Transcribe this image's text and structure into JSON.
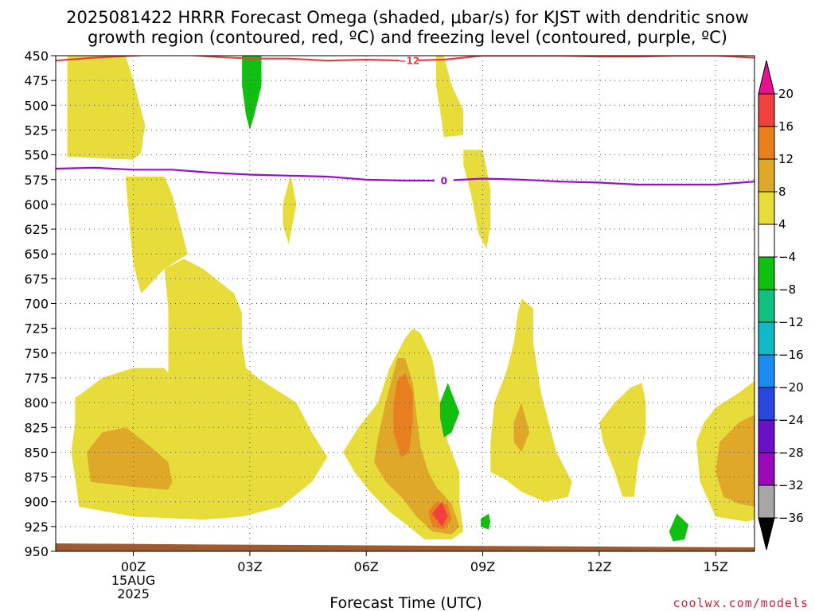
{
  "title_line1": "2025081422 HRRR Forecast Omega (shaded, μbar/s) for KJST with dendritic snow",
  "title_line2": "growth region (contoured, red, ºC) and freezing level (contoured, purple, ºC)",
  "credit": "coolwx.com/models",
  "chart_data": {
    "type": "heatmap",
    "xlabel": "Forecast Time (UTC)",
    "x_unit": "forecast hour (0 = 00Z 15AUG 2025)",
    "xlim": [
      -2,
      16
    ],
    "x_ticks": [
      {
        "value": 0,
        "lines": [
          "00Z",
          "15AUG",
          "2025"
        ]
      },
      {
        "value": 3,
        "lines": [
          "03Z"
        ]
      },
      {
        "value": 6,
        "lines": [
          "06Z"
        ]
      },
      {
        "value": 9,
        "lines": [
          "09Z"
        ]
      },
      {
        "value": 12,
        "lines": [
          "12Z"
        ]
      },
      {
        "value": 15,
        "lines": [
          "15Z"
        ]
      }
    ],
    "y_unit": "pressure (hPa)",
    "ylim": [
      450,
      950
    ],
    "y_ticks": [
      450,
      475,
      500,
      525,
      550,
      575,
      600,
      625,
      650,
      675,
      700,
      725,
      750,
      775,
      800,
      825,
      850,
      875,
      900,
      925,
      950
    ],
    "grid": true,
    "colorbar": {
      "unit": "μbar/s",
      "levels": [
        -36,
        -32,
        -28,
        -24,
        -20,
        -16,
        -12,
        -8,
        -4,
        4,
        8,
        12,
        16,
        20
      ],
      "colors": [
        "#000000",
        "#a6a6a6",
        "#9a08b8",
        "#6a10c8",
        "#2848e0",
        "#1a8cf0",
        "#10b8c8",
        "#10c080",
        "#10c010",
        "#ffffff",
        "#e8dc3a",
        "#e0a828",
        "#e88020",
        "#f04040",
        "#e8108c"
      ],
      "extend_low": true,
      "extend_high": true
    },
    "omega_regions": [
      {
        "level": "4 to 8",
        "color": "#e8dc3a",
        "polygon": [
          [
            -1.7,
            450
          ],
          [
            -0.2,
            450
          ],
          [
            0,
            475
          ],
          [
            0.3,
            520
          ],
          [
            0.2,
            548
          ],
          [
            0,
            555
          ],
          [
            -1.7,
            552
          ]
        ]
      },
      {
        "level": "-8 to -4",
        "color": "#10c010",
        "polygon": [
          [
            2.8,
            450
          ],
          [
            3.3,
            450
          ],
          [
            3.3,
            480
          ],
          [
            3.1,
            512
          ],
          [
            3.0,
            525
          ],
          [
            2.9,
            510
          ],
          [
            2.8,
            480
          ]
        ]
      },
      {
        "level": "4 to 8",
        "color": "#e8dc3a",
        "polygon": [
          [
            7.8,
            450
          ],
          [
            8.0,
            450
          ],
          [
            8.2,
            480
          ],
          [
            8.5,
            505
          ],
          [
            8.5,
            530
          ],
          [
            8.0,
            532
          ],
          [
            7.9,
            505
          ],
          [
            7.8,
            480
          ]
        ]
      },
      {
        "level": "4 to 8",
        "color": "#e8dc3a",
        "polygon": [
          [
            8.5,
            545
          ],
          [
            9.0,
            545
          ],
          [
            9.2,
            585
          ],
          [
            9.2,
            620
          ],
          [
            9.1,
            645
          ],
          [
            8.9,
            630
          ],
          [
            8.7,
            590
          ],
          [
            8.5,
            560
          ]
        ]
      },
      {
        "level": "4 to 8",
        "color": "#e8dc3a",
        "polygon": [
          [
            3.85,
            600
          ],
          [
            4.05,
            570
          ],
          [
            4.2,
            600
          ],
          [
            4.0,
            640
          ],
          [
            3.85,
            620
          ]
        ]
      },
      {
        "level": "4 to 8",
        "color": "#e8dc3a",
        "polygon": [
          [
            -1.5,
            795
          ],
          [
            -1.2,
            787
          ],
          [
            -0.8,
            775
          ],
          [
            0,
            765
          ],
          [
            0.8,
            765
          ],
          [
            0.9,
            770
          ],
          [
            0.9,
            705
          ],
          [
            0.8,
            665
          ],
          [
            1.3,
            655
          ],
          [
            1.8,
            665
          ],
          [
            2.6,
            690
          ],
          [
            2.8,
            710
          ],
          [
            2.8,
            740
          ],
          [
            2.9,
            765
          ],
          [
            3.2,
            775
          ],
          [
            4.2,
            800
          ],
          [
            4.6,
            830
          ],
          [
            5.0,
            855
          ],
          [
            4.6,
            880
          ],
          [
            3.8,
            905
          ],
          [
            2.8,
            915
          ],
          [
            1.8,
            918
          ],
          [
            0,
            915
          ],
          [
            -1.4,
            905
          ],
          [
            -1.5,
            875
          ],
          [
            -1.6,
            850
          ],
          [
            -1.5,
            820
          ]
        ]
      },
      {
        "level": "4 to 8",
        "color": "#e8dc3a",
        "polygon": [
          [
            -0.2,
            572
          ],
          [
            0.8,
            572
          ],
          [
            1.0,
            590
          ],
          [
            1.2,
            620
          ],
          [
            1.4,
            650
          ],
          [
            0.8,
            665
          ],
          [
            0.2,
            690
          ],
          [
            0,
            660
          ],
          [
            -0.1,
            620
          ]
        ]
      },
      {
        "level": "4 to 8",
        "color": "#e8dc3a",
        "polygon": [
          [
            5.4,
            850
          ],
          [
            5.8,
            825
          ],
          [
            6.3,
            800
          ],
          [
            6.6,
            765
          ],
          [
            7.0,
            735
          ],
          [
            7.2,
            725
          ],
          [
            7.4,
            730
          ],
          [
            7.7,
            755
          ],
          [
            7.9,
            800
          ],
          [
            8.1,
            840
          ],
          [
            8.4,
            870
          ],
          [
            8.4,
            885
          ],
          [
            8.4,
            900
          ],
          [
            8.5,
            930
          ],
          [
            8.2,
            938
          ],
          [
            7.5,
            938
          ],
          [
            7.1,
            925
          ],
          [
            6.6,
            910
          ],
          [
            6.1,
            890
          ],
          [
            5.7,
            870
          ]
        ]
      },
      {
        "level": "4 to 8",
        "color": "#e8dc3a",
        "polygon": [
          [
            9.2,
            870
          ],
          [
            9.2,
            840
          ],
          [
            9.3,
            800
          ],
          [
            9.6,
            770
          ],
          [
            9.8,
            740
          ],
          [
            9.9,
            710
          ],
          [
            10.0,
            695
          ],
          [
            10.3,
            705
          ],
          [
            10.3,
            740
          ],
          [
            10.5,
            790
          ],
          [
            10.9,
            850
          ],
          [
            11.3,
            880
          ],
          [
            11.2,
            895
          ],
          [
            10.6,
            900
          ],
          [
            10.0,
            890
          ],
          [
            9.6,
            878
          ]
        ]
      },
      {
        "level": "4 to 8",
        "color": "#e8dc3a",
        "polygon": [
          [
            12.0,
            820
          ],
          [
            12.4,
            800
          ],
          [
            12.8,
            785
          ],
          [
            13.1,
            780
          ],
          [
            13.2,
            800
          ],
          [
            13.2,
            830
          ],
          [
            13.0,
            860
          ],
          [
            12.9,
            895
          ],
          [
            12.6,
            895
          ],
          [
            12.4,
            870
          ],
          [
            12.1,
            840
          ]
        ]
      },
      {
        "level": "4 to 8",
        "color": "#e8dc3a",
        "polygon": [
          [
            15.0,
            805
          ],
          [
            15.6,
            790
          ],
          [
            16,
            778
          ],
          [
            16,
            918
          ],
          [
            15.8,
            920
          ],
          [
            15.0,
            915
          ],
          [
            14.6,
            880
          ],
          [
            14.5,
            840
          ],
          [
            14.7,
            820
          ]
        ]
      },
      {
        "level": "8 to 12",
        "color": "#e0a828",
        "polygon": [
          [
            -1.2,
            850
          ],
          [
            -0.8,
            830
          ],
          [
            -0.2,
            825
          ],
          [
            0.3,
            840
          ],
          [
            0.9,
            860
          ],
          [
            1.0,
            880
          ],
          [
            0.9,
            888
          ],
          [
            0,
            885
          ],
          [
            -1.1,
            880
          ]
        ]
      },
      {
        "level": "8 to 12",
        "color": "#e0a828",
        "polygon": [
          [
            6.2,
            860
          ],
          [
            6.3,
            835
          ],
          [
            6.5,
            800
          ],
          [
            6.7,
            770
          ],
          [
            6.8,
            755
          ],
          [
            7.0,
            755
          ],
          [
            7.2,
            780
          ],
          [
            7.3,
            815
          ],
          [
            7.4,
            845
          ],
          [
            7.6,
            870
          ],
          [
            7.8,
            885
          ],
          [
            8.2,
            902
          ],
          [
            8.4,
            925
          ],
          [
            8.2,
            933
          ],
          [
            7.7,
            930
          ],
          [
            7.3,
            915
          ],
          [
            6.9,
            895
          ],
          [
            6.5,
            880
          ]
        ]
      },
      {
        "level": "8 to 12",
        "color": "#e0a828",
        "polygon": [
          [
            9.8,
            820
          ],
          [
            10.0,
            800
          ],
          [
            10.2,
            830
          ],
          [
            10.0,
            850
          ],
          [
            9.8,
            840
          ]
        ]
      },
      {
        "level": "8 to 12",
        "color": "#e0a828",
        "polygon": [
          [
            15.1,
            840
          ],
          [
            15.6,
            820
          ],
          [
            16,
            812
          ],
          [
            16,
            905
          ],
          [
            15.6,
            902
          ],
          [
            15.2,
            895
          ],
          [
            15.0,
            870
          ]
        ]
      },
      {
        "level": "12 to 16",
        "color": "#e88020",
        "polygon": [
          [
            6.7,
            800
          ],
          [
            6.8,
            778
          ],
          [
            7.0,
            770
          ],
          [
            7.2,
            790
          ],
          [
            7.2,
            820
          ],
          [
            7.1,
            850
          ],
          [
            6.9,
            855
          ],
          [
            6.7,
            830
          ]
        ]
      },
      {
        "level": "12 to 16",
        "color": "#e88020",
        "polygon": [
          [
            7.6,
            910
          ],
          [
            7.8,
            900
          ],
          [
            8.1,
            903
          ],
          [
            8.2,
            918
          ],
          [
            8.0,
            928
          ],
          [
            7.7,
            925
          ]
        ]
      },
      {
        "level": "16 to 20",
        "color": "#f04040",
        "polygon": [
          [
            7.7,
            912
          ],
          [
            7.95,
            900
          ],
          [
            8.1,
            915
          ],
          [
            7.95,
            925
          ]
        ]
      },
      {
        "level": "-8 to -4",
        "color": "#10c010",
        "polygon": [
          [
            7.9,
            800
          ],
          [
            8.1,
            780
          ],
          [
            8.2,
            790
          ],
          [
            8.4,
            810
          ],
          [
            8.2,
            830
          ],
          [
            8.0,
            835
          ],
          [
            7.9,
            815
          ]
        ]
      },
      {
        "level": "-8 to -4",
        "color": "#10c010",
        "polygon": [
          [
            8.95,
            917
          ],
          [
            9.15,
            912
          ],
          [
            9.2,
            920
          ],
          [
            9.15,
            928
          ],
          [
            8.95,
            925
          ]
        ]
      },
      {
        "level": "-8 to -4",
        "color": "#10c010",
        "polygon": [
          [
            13.8,
            930
          ],
          [
            14.0,
            912
          ],
          [
            14.3,
            923
          ],
          [
            14.2,
            938
          ],
          [
            13.9,
            940
          ]
        ]
      }
    ],
    "contours": [
      {
        "name": "dendritic snow growth region",
        "value": -12,
        "label": "−12",
        "label_x": 7.1,
        "color": "#e84040",
        "points": [
          [
            -2,
            455
          ],
          [
            -1,
            452
          ],
          [
            0,
            450
          ],
          [
            1,
            448
          ],
          [
            2,
            451
          ],
          [
            3,
            453
          ],
          [
            4,
            453
          ],
          [
            5,
            455
          ],
          [
            6,
            454
          ],
          [
            7,
            455
          ],
          [
            8,
            454
          ],
          [
            9,
            450
          ],
          [
            10,
            450
          ],
          [
            11,
            450
          ],
          [
            12,
            451
          ],
          [
            13,
            451
          ],
          [
            14,
            450
          ],
          [
            15,
            450
          ],
          [
            16,
            452
          ]
        ]
      },
      {
        "name": "freezing level",
        "value": 0,
        "label": "0",
        "label_x": 8.0,
        "color": "#9a0ad0",
        "points": [
          [
            -2,
            564
          ],
          [
            -1,
            563
          ],
          [
            0,
            565
          ],
          [
            1,
            565
          ],
          [
            2,
            568
          ],
          [
            3,
            570
          ],
          [
            4,
            571
          ],
          [
            5,
            572
          ],
          [
            6,
            575
          ],
          [
            7,
            576
          ],
          [
            8,
            576
          ],
          [
            9,
            574
          ],
          [
            10,
            575
          ],
          [
            11,
            577
          ],
          [
            12,
            578
          ],
          [
            13,
            580
          ],
          [
            14,
            580
          ],
          [
            15,
            580
          ],
          [
            16,
            577
          ]
        ]
      }
    ],
    "terrain": {
      "color": "#a05a30",
      "points": [
        [
          -2,
          942
        ],
        [
          1.5,
          943
        ],
        [
          16,
          946
        ]
      ]
    }
  }
}
